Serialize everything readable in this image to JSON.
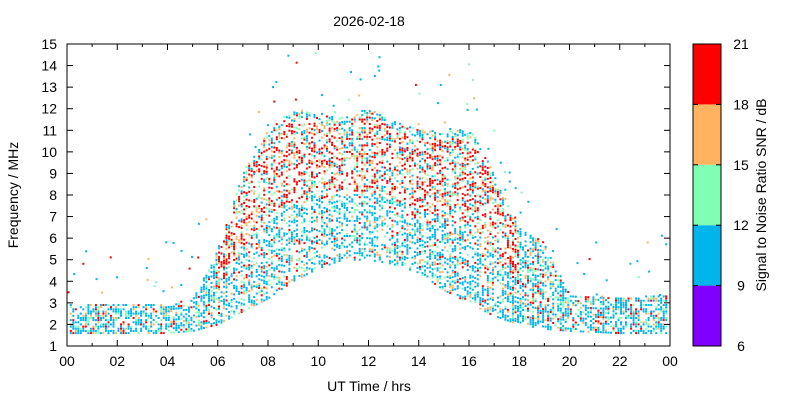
{
  "chart_data": {
    "type": "heatmap",
    "title": "2026-02-18",
    "xlabel": "UT Time / hrs",
    "ylabel": "Frequency / MHz",
    "xlim": [
      0,
      24
    ],
    "ylim": [
      1,
      15
    ],
    "x_ticks": [
      "00",
      "02",
      "04",
      "06",
      "08",
      "10",
      "12",
      "14",
      "16",
      "18",
      "20",
      "22",
      "00"
    ],
    "y_ticks": [
      "1",
      "2",
      "3",
      "4",
      "5",
      "6",
      "7",
      "8",
      "9",
      "10",
      "11",
      "12",
      "13",
      "14",
      "15"
    ],
    "colorbar": {
      "label": "Signal to Noise Ratio SNR / dB",
      "range": [
        6,
        21
      ],
      "ticks": [
        "6",
        "9",
        "12",
        "15",
        "18",
        "21"
      ],
      "bins": [
        {
          "from": 6,
          "to": 9,
          "color": "#8000ff"
        },
        {
          "from": 9,
          "to": 12,
          "color": "#00b4ec"
        },
        {
          "from": 12,
          "to": 15,
          "color": "#80ffb4"
        },
        {
          "from": 15,
          "to": 18,
          "color": "#ffb360"
        },
        {
          "from": 18,
          "to": 21,
          "color": "#ff0000"
        }
      ]
    },
    "grid": false,
    "description": "Ionogram-style scatter of detected frequencies vs UT time, coloured by SNR",
    "envelope": [
      {
        "t": 0,
        "fmin": 1.6,
        "fmax": 3.0
      },
      {
        "t": 2,
        "fmin": 1.6,
        "fmax": 3.0
      },
      {
        "t": 4,
        "fmin": 1.6,
        "fmax": 2.9
      },
      {
        "t": 5,
        "fmin": 1.7,
        "fmax": 3.2
      },
      {
        "t": 6,
        "fmin": 2.0,
        "fmax": 5.5
      },
      {
        "t": 7,
        "fmin": 2.6,
        "fmax": 9.0
      },
      {
        "t": 8,
        "fmin": 3.2,
        "fmax": 11.0
      },
      {
        "t": 9,
        "fmin": 4.0,
        "fmax": 12.0
      },
      {
        "t": 10,
        "fmin": 4.6,
        "fmax": 11.8
      },
      {
        "t": 11,
        "fmin": 5.0,
        "fmax": 11.6
      },
      {
        "t": 12,
        "fmin": 5.0,
        "fmax": 12.0
      },
      {
        "t": 13,
        "fmin": 4.8,
        "fmax": 11.4
      },
      {
        "t": 14,
        "fmin": 4.4,
        "fmax": 11.0
      },
      {
        "t": 15,
        "fmin": 3.6,
        "fmax": 11.0
      },
      {
        "t": 16,
        "fmin": 3.0,
        "fmax": 11.2
      },
      {
        "t": 17,
        "fmin": 2.4,
        "fmax": 9.0
      },
      {
        "t": 18,
        "fmin": 2.0,
        "fmax": 6.4
      },
      {
        "t": 19,
        "fmin": 1.8,
        "fmax": 5.8
      },
      {
        "t": 20,
        "fmin": 1.7,
        "fmax": 3.4
      },
      {
        "t": 22,
        "fmin": 1.6,
        "fmax": 3.2
      },
      {
        "t": 24,
        "fmin": 1.6,
        "fmax": 3.4
      }
    ]
  }
}
